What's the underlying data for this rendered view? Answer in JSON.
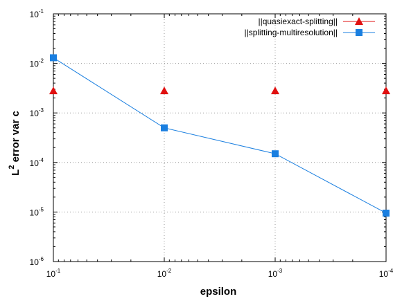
{
  "chart_data": {
    "type": "line",
    "xlabel": "epsilon",
    "ylabel": "L^2 error var c",
    "ylabel_main": "L",
    "ylabel_sup": "2",
    "ylabel_rest": " error var c",
    "x_scale": "log",
    "y_scale": "log",
    "x_reversed": true,
    "xlim": [
      0.1,
      0.0001
    ],
    "ylim": [
      1e-06,
      0.1
    ],
    "x_ticks": [
      {
        "value": 0.1,
        "base": "10",
        "exp": "-1"
      },
      {
        "value": 0.01,
        "base": "10",
        "exp": "-2"
      },
      {
        "value": 0.001,
        "base": "10",
        "exp": "-3"
      },
      {
        "value": 0.0001,
        "base": "10",
        "exp": "-4"
      }
    ],
    "y_ticks": [
      {
        "value": 1e-06,
        "base": "10",
        "exp": "-6"
      },
      {
        "value": 1e-05,
        "base": "10",
        "exp": "-5"
      },
      {
        "value": 0.0001,
        "base": "10",
        "exp": "-4"
      },
      {
        "value": 0.001,
        "base": "10",
        "exp": "-3"
      },
      {
        "value": 0.01,
        "base": "10",
        "exp": "-2"
      },
      {
        "value": 0.1,
        "base": "10",
        "exp": "-1"
      }
    ],
    "grid": true,
    "legend_position": "top-right",
    "series": [
      {
        "name": "||quasiexact-splitting||",
        "marker": "triangle",
        "line": false,
        "color": "#e01010",
        "x": [
          0.1,
          0.01,
          0.001,
          0.0001
        ],
        "y": [
          0.0028,
          0.0028,
          0.0028,
          0.0028
        ]
      },
      {
        "name": "||splitting-multiresolution||",
        "marker": "square",
        "line": true,
        "color": "#1a7fe0",
        "x": [
          0.1,
          0.01,
          0.001,
          0.0001
        ],
        "y": [
          0.013,
          0.0005,
          0.00015,
          9.5e-06
        ]
      }
    ]
  }
}
